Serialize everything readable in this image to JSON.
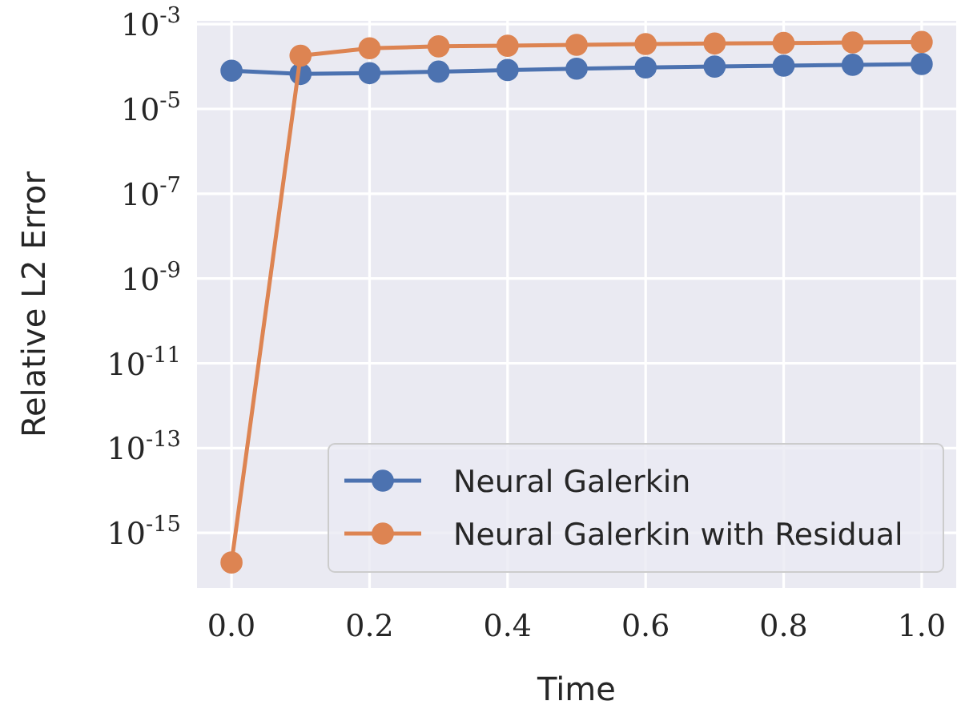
{
  "chart_data": {
    "type": "line",
    "xlabel": "Time",
    "ylabel": "Relative L2 Error",
    "x": [
      0,
      0.1,
      0.2,
      0.3,
      0.4,
      0.5,
      0.6,
      0.7,
      0.8,
      0.9,
      1.0
    ],
    "series": [
      {
        "name": "Neural Galerkin",
        "color": "#4c72b0",
        "values": [
          8e-05,
          6.7e-05,
          7e-05,
          7.6e-05,
          8.3e-05,
          8.9e-05,
          9.5e-05,
          0.0001,
          0.000105,
          0.00011,
          0.000115
        ]
      },
      {
        "name": "Neural Galerkin with Residual",
        "color": "#dd8452",
        "values": [
          2e-16,
          0.00018,
          0.00027,
          0.0003,
          0.00031,
          0.000325,
          0.00034,
          0.00035,
          0.00036,
          0.00037,
          0.00038
        ]
      }
    ],
    "log": "y",
    "xlim": [
      -0.05,
      1.05
    ],
    "ylim": [
      5e-17,
      0.0012
    ],
    "xticks": [
      {
        "value": 0,
        "label": "0.0"
      },
      0.2,
      0.4,
      0.6,
      0.8,
      {
        "value": 1,
        "label": "1.0"
      }
    ],
    "yticks": [
      {
        "value": 1e-15,
        "label": "10$^{-15}$"
      },
      {
        "value": 1e-13,
        "label": "10$^{-13}$"
      },
      {
        "value": 1e-11,
        "label": "10$^{-11}$"
      },
      {
        "value": 1e-09,
        "label": "10$^{-9}$"
      },
      {
        "value": 1e-07,
        "label": "10$^{-7}$"
      },
      {
        "value": 1e-05,
        "label": "10$^{-5}$"
      },
      {
        "value": 0.001,
        "label": "10$^{-3}$"
      }
    ],
    "grid": true,
    "legend": "bottom right",
    "marker": "circle",
    "line_style": "solid"
  }
}
